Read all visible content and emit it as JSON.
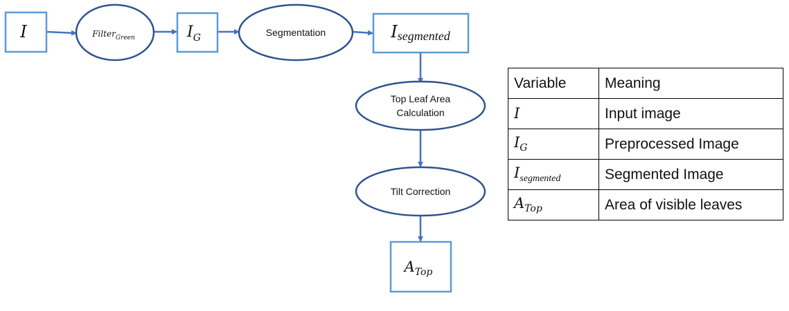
{
  "flow": {
    "input_node": {
      "base": "I",
      "sub": ""
    },
    "filter_node": {
      "base": "Filter",
      "sub": "Green"
    },
    "ig_node": {
      "base": "I",
      "sub": "G"
    },
    "segmentation_node": {
      "label": "Segmentation"
    },
    "isegmented_node": {
      "base": "I",
      "sub": "segmented"
    },
    "top_leaf_node": {
      "line1": "Top Leaf Area",
      "line2": "Calculation"
    },
    "tilt_node": {
      "label": "Tilt Correction"
    },
    "atop_node": {
      "base": "A",
      "sub": "Top"
    }
  },
  "legend": {
    "header": {
      "variable": "Variable",
      "meaning": "Meaning"
    },
    "rows": [
      {
        "base": "I",
        "sub": "",
        "meaning": "Input image"
      },
      {
        "base": "I",
        "sub": "G",
        "meaning": "Preprocessed Image"
      },
      {
        "base": "I",
        "sub": "segmented",
        "meaning": "Segmented Image"
      },
      {
        "base": "A",
        "sub": "Top",
        "meaning": "Area of visible leaves"
      }
    ]
  },
  "colors": {
    "box_border": "#5b9bd5",
    "ellipse_border": "#2f528f",
    "arrow": "#4472c4",
    "text": "#111111"
  }
}
